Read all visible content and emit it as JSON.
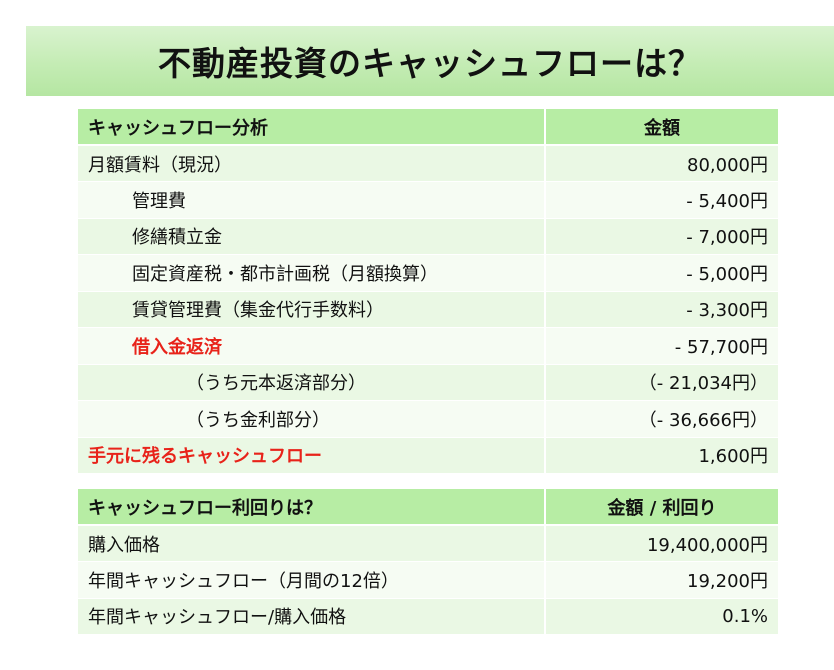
{
  "title": "不動産投資のキャッシュフローは？",
  "cashflow_table": {
    "header": {
      "item": "キャッシュフロー分析",
      "amount": "金額"
    },
    "rows": [
      {
        "label": "月額賃料（現況）",
        "amount": "80,000円"
      },
      {
        "label": "管理費",
        "amount": "- 5,400円"
      },
      {
        "label": "修繕積立金",
        "amount": "- 7,000円"
      },
      {
        "label": "固定資産税・都市計画税（月額換算）",
        "amount": "- 5,000円"
      },
      {
        "label": "賃貸管理費（集金代行手数料）",
        "amount": "- 3,300円"
      },
      {
        "label": "借入金返済",
        "amount": "- 57,700円"
      },
      {
        "label": "（うち元本返済部分）",
        "amount": "（- 21,034円）"
      },
      {
        "label": "（うち金利部分）",
        "amount": "（- 36,666円）"
      },
      {
        "label": "手元に残るキャッシュフロー",
        "amount": "1,600円"
      }
    ]
  },
  "yield_table": {
    "header": {
      "item": "キャッシュフロー利回りは？",
      "amount": "金額 / 利回り"
    },
    "rows": [
      {
        "label": "購入価格",
        "amount": "19,400,000円"
      },
      {
        "label": "年間キャッシュフロー（月間の12倍）",
        "amount": "19,200円"
      },
      {
        "label": "年間キャッシュフロー/購入価格",
        "amount": "0.1%"
      }
    ]
  },
  "colors": {
    "highlight_text": "#e8231a",
    "header_bg": "#b7eda4"
  }
}
